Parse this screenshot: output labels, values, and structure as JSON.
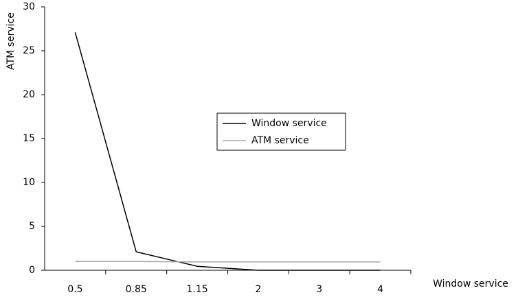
{
  "chart_data": {
    "type": "line",
    "x_label": "Window service",
    "y_label": "ATM service",
    "categories": [
      "0.5",
      "0.85",
      "1.15",
      "2",
      "3",
      "4"
    ],
    "series": [
      {
        "name": "Window service",
        "color": "#000000",
        "values": [
          27.1,
          2.1,
          0.45,
          0,
          0,
          0
        ]
      },
      {
        "name": "ATM service",
        "color": "#a6a6a6",
        "values": [
          1,
          1,
          0.95,
          0.95,
          0.95,
          0.95
        ]
      }
    ],
    "ylim": [
      0,
      30
    ],
    "yticks": [
      0,
      5,
      10,
      15,
      20,
      25,
      30
    ],
    "legend": "center"
  }
}
